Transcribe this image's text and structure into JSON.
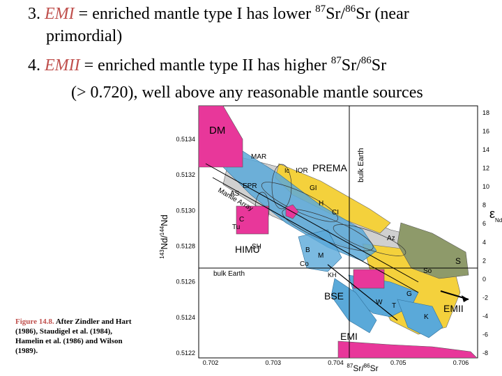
{
  "slide": {
    "line1": {
      "prefix": "3. ",
      "emph": "EMI",
      "mid": " = enriched mantle type I",
      "rest": " has lower ",
      "sup1": "87",
      "a": "Sr/",
      "sup2": "86",
      "b": "Sr (near"
    },
    "line2": "primordial)",
    "line3": {
      "prefix": "4. ",
      "emph": "EMII",
      "mid": " = enriched mantle type II",
      "rest": " has higher ",
      "sup1": "87",
      "a": "Sr/",
      "sup2": "86",
      "b": "Sr"
    },
    "line4": "(> 0.720), well above any reasonable mantle sources"
  },
  "caption": {
    "figure": "Figure 14.8.",
    "text": " After Zindler and Hart (1986), Staudigel et al. (1984), Hamelin et al. (1986) and Wilson (1989)."
  },
  "chart_data": {
    "type": "diagram",
    "xlabel": "87Sr/86Sr",
    "ylabel": "143Nd/144Nd",
    "right_axis_label": "εNd",
    "x_ticks": [
      "0.702",
      "0.703",
      "0.704",
      "0.705",
      "0.706"
    ],
    "y_ticks": [
      "0.5134",
      "0.5132",
      "0.5130",
      "0.5128",
      "0.5126",
      "0.5124",
      "0.5122"
    ],
    "right_ticks": [
      "18",
      "16",
      "14",
      "12",
      "10",
      "8",
      "6",
      "4",
      "2",
      "0",
      "-2",
      "-4",
      "-6",
      "-8"
    ],
    "labels": {
      "dm": "DM",
      "mar": "MAR",
      "epr": "EPR",
      "as": "AS",
      "mantle_array": "Mantle Array",
      "prema": "PREMA",
      "bulk_earth_v": "bulk Earth",
      "bulk_earth_h": "bulk Earth",
      "ic": "Ic",
      "ior": "IOR",
      "gi": "GI",
      "h": "H",
      "ci": "CI",
      "c": "C",
      "tu": "Tu",
      "himu": "HIMU",
      "sh": "SH",
      "az": "Az",
      "b": "B",
      "m": "M",
      "co": "Co",
      "kh": "KH",
      "so": "So",
      "s": "S",
      "bse": "BSE",
      "w": "W",
      "t": "T",
      "g": "G",
      "k": "K",
      "emii": "EMII",
      "emi": "EMI"
    },
    "colors": {
      "magenta": "#e8379a",
      "blue": "#5aa9d9",
      "yellow": "#f4d13c",
      "gray": "#a9a9a9",
      "olive": "#8e9a6a"
    }
  }
}
